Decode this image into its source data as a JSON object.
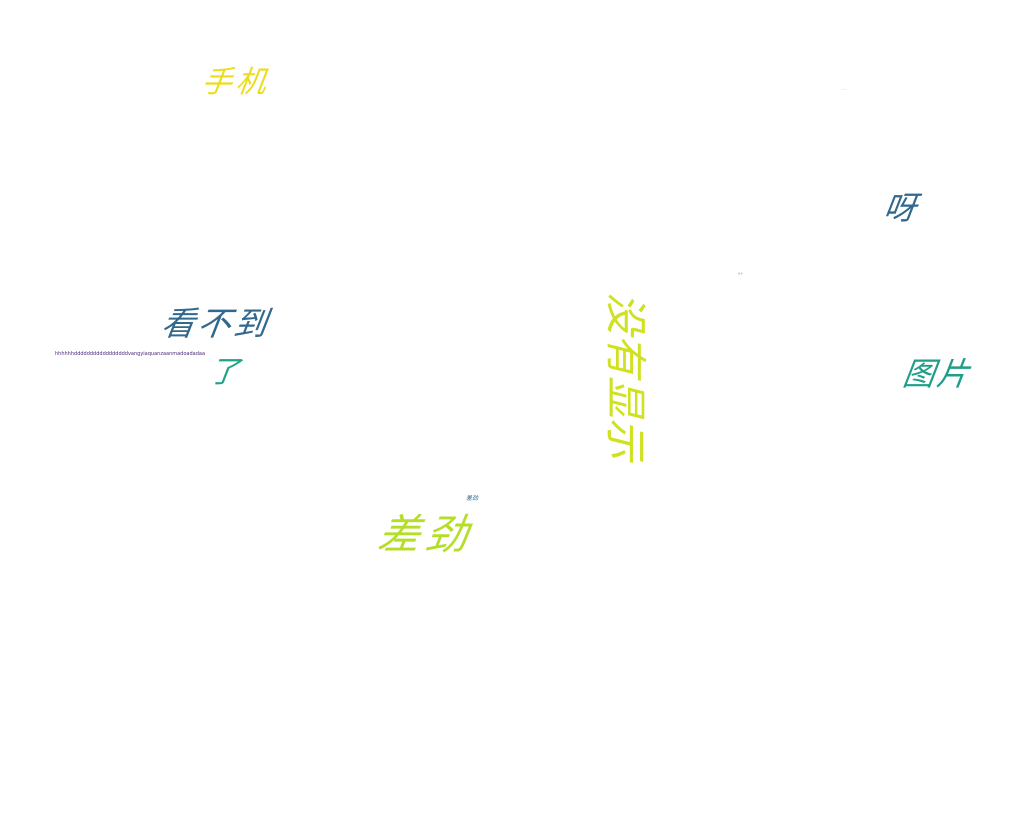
{
  "colors": {
    "bright_yellow": "#ecdd1c",
    "lime": "#b5de2b",
    "yellow_green": "#cfe11f",
    "teal": "#1f9e89",
    "teal_light": "#20a486",
    "dark_blue": "#31688e",
    "slate_blue": "#3b528b",
    "purple": "#482878"
  },
  "words": {
    "w1": "手机",
    "w2": "...",
    "w3": "呀",
    "w4": "。。",
    "w5": "看不到",
    "w6": "hhhhhhdddddddddddddddddvangyiaquanzaanmadoadadaa",
    "w7": "了",
    "w8": "图片",
    "w9": "没有显示",
    "w10": "差劲",
    "w11": "差劲"
  }
}
